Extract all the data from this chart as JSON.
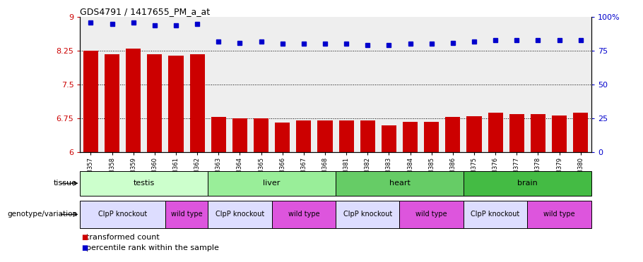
{
  "title": "GDS4791 / 1417655_PM_a_at",
  "samples": [
    "GSM988357",
    "GSM988358",
    "GSM988359",
    "GSM988360",
    "GSM988361",
    "GSM988362",
    "GSM988363",
    "GSM988364",
    "GSM988365",
    "GSM988366",
    "GSM988367",
    "GSM988368",
    "GSM988381",
    "GSM988382",
    "GSM988383",
    "GSM988384",
    "GSM988385",
    "GSM988386",
    "GSM988375",
    "GSM988376",
    "GSM988377",
    "GSM988378",
    "GSM988379",
    "GSM988380"
  ],
  "bar_values": [
    8.25,
    8.18,
    8.3,
    8.18,
    8.14,
    8.18,
    6.78,
    6.75,
    6.75,
    6.65,
    6.7,
    6.7,
    6.7,
    6.7,
    6.6,
    6.67,
    6.67,
    6.78,
    6.8,
    6.88,
    6.85,
    6.85,
    6.82,
    6.88
  ],
  "percentile_values": [
    96,
    95,
    96,
    94,
    94,
    95,
    82,
    81,
    82,
    80,
    80,
    80,
    80,
    79,
    79,
    80,
    80,
    81,
    82,
    83,
    83,
    83,
    83,
    83
  ],
  "ylim": [
    6.0,
    9.0
  ],
  "right_ylim": [
    0,
    100
  ],
  "yticks_left": [
    6.0,
    6.75,
    7.5,
    8.25,
    9.0
  ],
  "ytick_labels_left": [
    "6",
    "6.75",
    "7.5",
    "8.25",
    "9"
  ],
  "yticks_right": [
    0,
    25,
    50,
    75,
    100
  ],
  "ytick_labels_right": [
    "0",
    "25",
    "50",
    "75",
    "100%"
  ],
  "bar_color": "#cc0000",
  "dot_color": "#0000cc",
  "tissue_groups": [
    {
      "name": "testis",
      "start": 0,
      "end": 5,
      "color": "#ccffcc"
    },
    {
      "name": "liver",
      "start": 6,
      "end": 11,
      "color": "#99ee99"
    },
    {
      "name": "heart",
      "start": 12,
      "end": 17,
      "color": "#66cc66"
    },
    {
      "name": "brain",
      "start": 18,
      "end": 23,
      "color": "#44bb44"
    }
  ],
  "genotype_groups": [
    {
      "name": "ClpP knockout",
      "start": 0,
      "end": 3,
      "color": "#ddddff"
    },
    {
      "name": "wild type",
      "start": 4,
      "end": 5,
      "color": "#dd55dd"
    },
    {
      "name": "ClpP knockout",
      "start": 6,
      "end": 8,
      "color": "#ddddff"
    },
    {
      "name": "wild type",
      "start": 9,
      "end": 11,
      "color": "#dd55dd"
    },
    {
      "name": "ClpP knockout",
      "start": 12,
      "end": 14,
      "color": "#ddddff"
    },
    {
      "name": "wild type",
      "start": 15,
      "end": 17,
      "color": "#dd55dd"
    },
    {
      "name": "ClpP knockout",
      "start": 18,
      "end": 20,
      "color": "#ddddff"
    },
    {
      "name": "wild type",
      "start": 21,
      "end": 23,
      "color": "#dd55dd"
    }
  ],
  "legend_bar_label": "transformed count",
  "legend_dot_label": "percentile rank within the sample",
  "bg_color": "#eeeeee"
}
